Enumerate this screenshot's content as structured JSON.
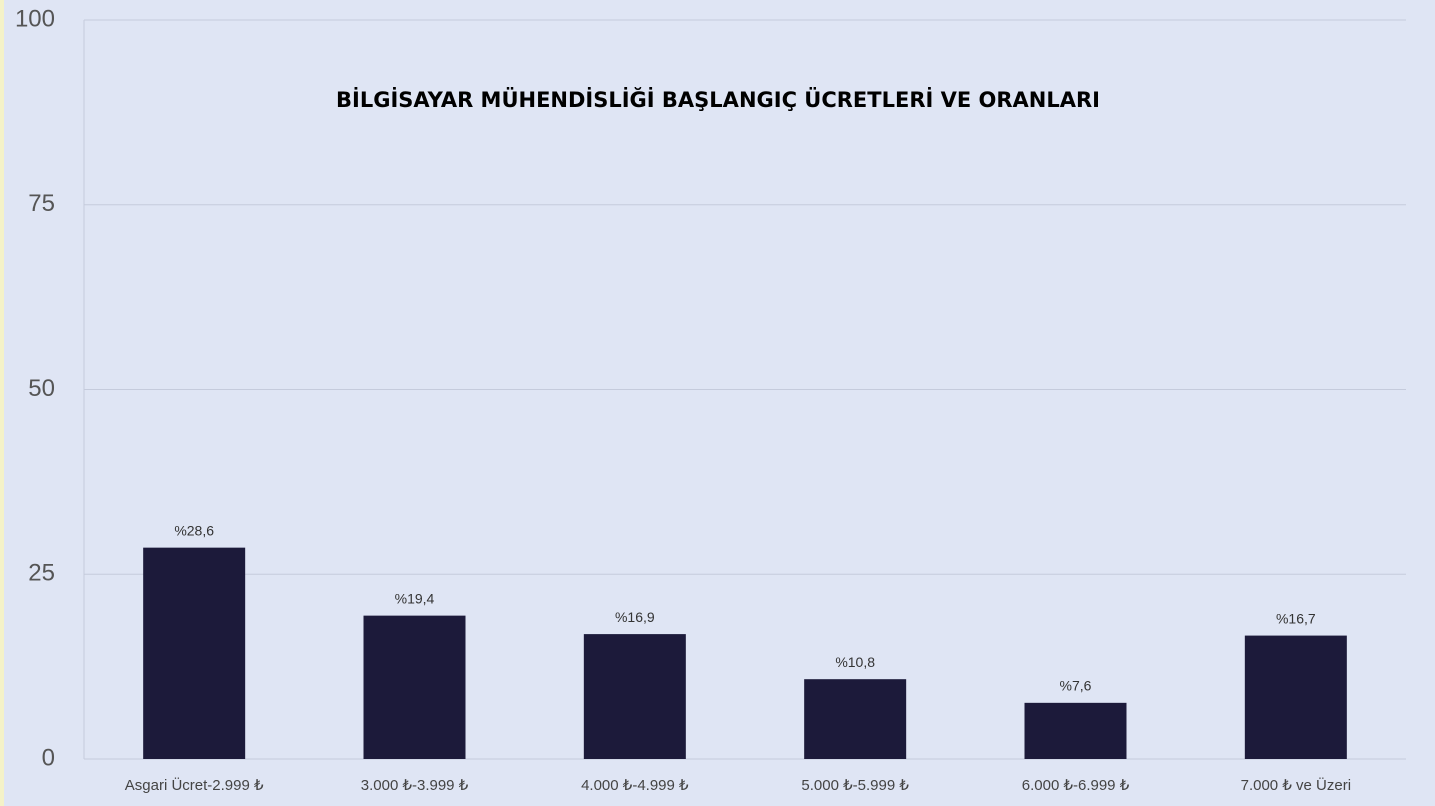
{
  "chart_data": {
    "type": "bar",
    "title": "BİLGİSAYAR MÜHENDİSLİĞİ BAŞLANGIÇ ÜCRETLERİ VE ORANLARI",
    "categories": [
      "Asgari Ücret-2.999 ₺",
      "3.000 ₺-3.999 ₺",
      "4.000 ₺-4.999 ₺",
      "5.000 ₺-5.999 ₺",
      "6.000 ₺-6.999 ₺",
      "7.000 ₺ ve Üzeri"
    ],
    "values": [
      28.6,
      19.4,
      16.9,
      10.8,
      7.6,
      16.7
    ],
    "value_labels": [
      "%28,6",
      "%19,4",
      "%16,9",
      "%10,8",
      "%7,6",
      "%16,7"
    ],
    "color": "#1c1a3a",
    "ylim": [
      0,
      100
    ],
    "yticks": [
      0,
      25,
      50,
      75,
      100
    ],
    "grid": true
  }
}
